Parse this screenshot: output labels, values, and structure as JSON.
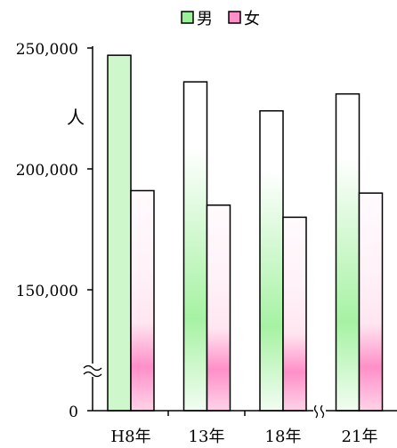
{
  "chart_data": {
    "type": "bar",
    "categories": [
      "H8年",
      "13年",
      "18年",
      "21年"
    ],
    "series": [
      {
        "name": "男",
        "values": [
          247000,
          236000,
          224000,
          231000
        ],
        "color": "#9df09a"
      },
      {
        "name": "女",
        "values": [
          191000,
          185000,
          180000,
          190000
        ],
        "color": "#ff8fc8"
      }
    ],
    "ylabel": "人",
    "y_ticks": [
      "250,000",
      "200,000",
      "150,000",
      "0"
    ],
    "ylim": [
      100000,
      250000
    ],
    "y_axis_break": true,
    "x_axis_break": true,
    "legend_position": "top-center",
    "grid": false
  }
}
